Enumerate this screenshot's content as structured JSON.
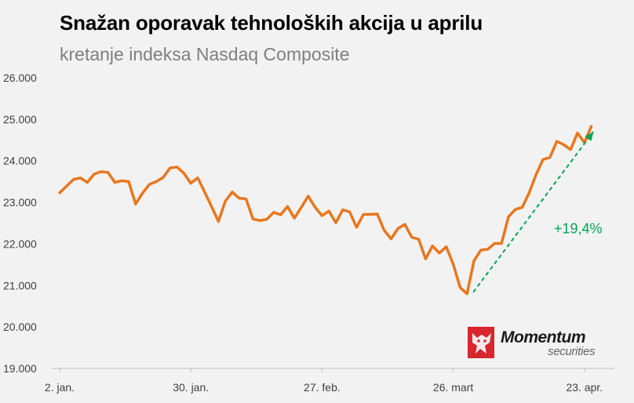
{
  "chart_data": {
    "type": "line",
    "title": "Snažan oporavak tehnoloških akcija u aprilu",
    "subtitle": "kretanje indeksa Nasdaq Composite",
    "ylim": [
      19000,
      26000
    ],
    "yticks": [
      "26.000",
      "25.000",
      "24.000",
      "23.000",
      "22.000",
      "21.000",
      "20.000",
      "19.000"
    ],
    "ytick_values": [
      26000,
      25000,
      24000,
      23000,
      22000,
      21000,
      20000,
      19000
    ],
    "xtick_labels": [
      "2. jan.",
      "30. jan.",
      "27. feb.",
      "26. mart",
      "23. apr."
    ],
    "xtick_indices": [
      0,
      19,
      38,
      57,
      76
    ],
    "grid": false,
    "series": [
      {
        "color": "#e8771e",
        "values": [
          23230,
          23390,
          23550,
          23590,
          23480,
          23680,
          23740,
          23720,
          23480,
          23520,
          23500,
          22960,
          23220,
          23430,
          23500,
          23600,
          23830,
          23850,
          23700,
          23460,
          23590,
          23250,
          22900,
          22540,
          23030,
          23250,
          23100,
          23080,
          22600,
          22560,
          22590,
          22760,
          22700,
          22900,
          22620,
          22880,
          23150,
          22880,
          22680,
          22790,
          22510,
          22820,
          22770,
          22400,
          22710,
          22710,
          22720,
          22330,
          22120,
          22370,
          22470,
          22160,
          22110,
          21640,
          21950,
          21780,
          21930,
          21510,
          20950,
          20800,
          21590,
          21850,
          21870,
          22010,
          22010,
          22650,
          22830,
          22880,
          23230,
          23670,
          24030,
          24080,
          24470,
          24390,
          24270,
          24670,
          24440,
          24830
        ]
      }
    ],
    "annotation": {
      "label": "+19,4%",
      "color": "#00a651",
      "from_index": 59,
      "from_value": 20800,
      "to_index": 77.3,
      "to_value": 24700
    }
  },
  "logo": {
    "name": "Momentum",
    "sub": "securities"
  }
}
